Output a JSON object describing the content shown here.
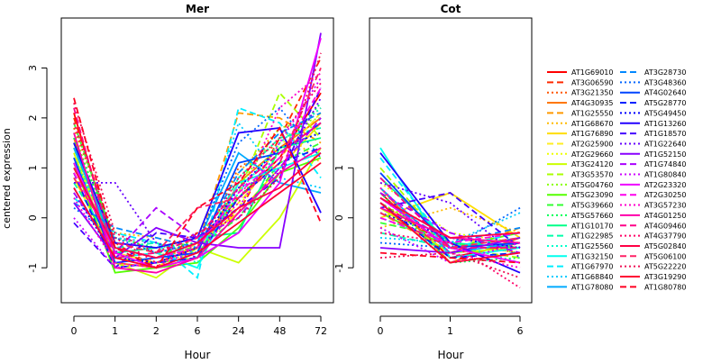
{
  "chart_data": [
    {
      "type": "line",
      "title": "Mer",
      "xlabel": "Hour",
      "ylabel": "centered expression",
      "x": [
        "0",
        "1",
        "2",
        "6",
        "24",
        "48",
        "72"
      ],
      "yticks": [
        "-1",
        "0",
        "1",
        "2",
        "3"
      ],
      "ylim": [
        -1.7,
        4.0
      ],
      "grid": false,
      "series": [
        {
          "name": "AT1G69010",
          "values": [
            2.1,
            -0.7,
            -0.9,
            -0.6,
            0.4,
            1.2,
            2.5
          ]
        },
        {
          "name": "AT3G06590",
          "values": [
            2.0,
            -0.5,
            -1.0,
            -0.3,
            0.1,
            1.6,
            3.2
          ]
        },
        {
          "name": "AT3G21350",
          "values": [
            1.8,
            -0.4,
            -0.5,
            -0.7,
            1.0,
            1.5,
            2.2
          ]
        },
        {
          "name": "AT4G30935",
          "values": [
            1.6,
            -0.9,
            -1.0,
            -0.8,
            0.7,
            1.4,
            2.0
          ]
        },
        {
          "name": "AT1G25550",
          "values": [
            1.5,
            -0.6,
            -0.8,
            -0.6,
            2.1,
            2.0,
            1.5
          ]
        },
        {
          "name": "AT1G68670",
          "values": [
            1.2,
            -0.3,
            -0.4,
            -0.6,
            0.9,
            1.8,
            1.1
          ]
        },
        {
          "name": "AT1G76890",
          "values": [
            0.8,
            -0.8,
            -1.0,
            -0.5,
            0.1,
            1.0,
            1.9
          ]
        },
        {
          "name": "AT2G25900",
          "values": [
            1.0,
            -0.7,
            -0.9,
            -0.6,
            0.3,
            1.2,
            2.1
          ]
        },
        {
          "name": "AT2G29660",
          "values": [
            0.9,
            -1.0,
            -0.9,
            -0.7,
            0.2,
            1.5,
            1.7
          ]
        },
        {
          "name": "AT3G24120",
          "values": [
            1.3,
            -0.9,
            -1.2,
            -0.6,
            -0.9,
            0.0,
            1.4
          ]
        },
        {
          "name": "AT3G53570",
          "values": [
            1.4,
            -0.8,
            -0.9,
            -0.8,
            0.5,
            2.5,
            1.6
          ]
        },
        {
          "name": "AT5G04760",
          "values": [
            1.7,
            -0.6,
            -0.8,
            -0.4,
            0.6,
            1.8,
            2.0
          ]
        },
        {
          "name": "AT5G23090",
          "values": [
            1.1,
            -1.1,
            -1.0,
            -0.9,
            -0.2,
            0.9,
            1.2
          ]
        },
        {
          "name": "AT5G39660",
          "values": [
            1.9,
            -0.5,
            -0.7,
            -0.6,
            0.0,
            1.1,
            1.5
          ]
        },
        {
          "name": "AT5G57660",
          "values": [
            1.6,
            -0.4,
            -0.6,
            -0.5,
            0.4,
            1.3,
            2.3
          ]
        },
        {
          "name": "AT1G10170",
          "values": [
            1.5,
            -0.7,
            -0.6,
            -0.4,
            -0.3,
            1.4,
            1.6
          ]
        },
        {
          "name": "AT1G22985",
          "values": [
            0.7,
            -0.6,
            -0.5,
            -0.8,
            0.8,
            1.6,
            1.8
          ]
        },
        {
          "name": "AT1G25560",
          "values": [
            1.2,
            -0.5,
            -0.6,
            -0.9,
            0.5,
            1.5,
            2.2
          ]
        },
        {
          "name": "AT1G32150",
          "values": [
            0.6,
            -0.8,
            -0.7,
            -1.0,
            0.7,
            1.0,
            1.3
          ]
        },
        {
          "name": "AT1G67970",
          "values": [
            0.4,
            -0.3,
            -0.5,
            -1.2,
            2.2,
            1.9,
            0.8
          ]
        },
        {
          "name": "AT1G68840",
          "values": [
            1.1,
            -0.4,
            -0.5,
            -0.7,
            1.9,
            0.8,
            0.6
          ]
        },
        {
          "name": "AT1G78080",
          "values": [
            1.4,
            -0.6,
            -0.8,
            -0.5,
            1.3,
            0.7,
            0.5
          ]
        },
        {
          "name": "AT3G28730",
          "values": [
            0.3,
            -0.2,
            -0.4,
            -0.6,
            0.9,
            1.7,
            2.1
          ]
        },
        {
          "name": "AT3G48360",
          "values": [
            0.2,
            -0.4,
            -0.7,
            -0.5,
            1.5,
            2.2,
            1.2
          ]
        },
        {
          "name": "AT4G02640",
          "values": [
            1.2,
            -0.9,
            -0.8,
            -0.7,
            1.1,
            1.3,
            1.9
          ]
        },
        {
          "name": "AT5G28770",
          "values": [
            0.9,
            -1.0,
            -0.9,
            -0.8,
            0.4,
            1.1,
            1.4
          ]
        },
        {
          "name": "AT5G49450",
          "values": [
            0.5,
            -0.8,
            -0.9,
            -0.6,
            0.6,
            1.4,
            1.7
          ]
        },
        {
          "name": "AT1G13260",
          "values": [
            1.5,
            -0.5,
            -0.6,
            -0.4,
            1.7,
            1.8,
            0.1
          ]
        },
        {
          "name": "AT1G18570",
          "values": [
            -0.1,
            -1.0,
            -0.3,
            -0.4,
            0.2,
            0.8,
            2.6
          ]
        },
        {
          "name": "AT1G22640",
          "values": [
            0.7,
            0.7,
            -0.5,
            -0.8,
            0.6,
            0.9,
            2.4
          ]
        },
        {
          "name": "AT1G52150",
          "values": [
            0.3,
            -0.8,
            -0.2,
            -0.5,
            -0.6,
            -0.6,
            3.7
          ]
        },
        {
          "name": "AT1G74840",
          "values": [
            0.5,
            -0.7,
            0.2,
            -0.4,
            0.0,
            1.0,
            2.0
          ]
        },
        {
          "name": "AT1G80840",
          "values": [
            0.0,
            -1.0,
            -0.9,
            -0.7,
            0.2,
            1.5,
            2.8
          ]
        },
        {
          "name": "AT2G23320",
          "values": [
            1.1,
            -0.7,
            -1.0,
            -0.8,
            -0.3,
            0.7,
            3.6
          ]
        },
        {
          "name": "AT2G30250",
          "values": [
            0.9,
            -0.6,
            -0.8,
            -0.6,
            0.5,
            1.2,
            2.6
          ]
        },
        {
          "name": "AT3G57230",
          "values": [
            0.4,
            -0.9,
            -1.0,
            -0.5,
            0.3,
            2.2,
            2.9
          ]
        },
        {
          "name": "AT4G01250",
          "values": [
            1.7,
            -1.0,
            -1.1,
            -0.8,
            0.1,
            0.9,
            1.4
          ]
        },
        {
          "name": "AT4G09460",
          "values": [
            2.2,
            -0.8,
            -0.7,
            -0.4,
            0.6,
            1.3,
            1.9
          ]
        },
        {
          "name": "AT4G37790",
          "values": [
            1.9,
            -0.4,
            -0.9,
            -0.6,
            0.8,
            1.6,
            2.7
          ]
        },
        {
          "name": "AT5G02840",
          "values": [
            1.0,
            -0.6,
            -0.8,
            -0.5,
            0.2,
            0.6,
            1.3
          ]
        },
        {
          "name": "AT5G06100",
          "values": [
            0.8,
            -0.5,
            -0.7,
            0.2,
            0.4,
            1.1,
            3.0
          ]
        },
        {
          "name": "AT5G22220",
          "values": [
            2.3,
            -0.3,
            -0.7,
            -0.3,
            0.0,
            0.8,
            3.3
          ]
        },
        {
          "name": "AT3G19290",
          "values": [
            0.6,
            -0.8,
            -1.0,
            -0.7,
            -0.1,
            0.5,
            1.1
          ]
        },
        {
          "name": "AT1G80780",
          "values": [
            2.4,
            -0.6,
            -1.0,
            0.2,
            0.7,
            1.8,
            -0.1
          ]
        }
      ]
    },
    {
      "type": "line",
      "title": "Cot",
      "xlabel": "Hour",
      "ylabel": "",
      "x": [
        "0",
        "1",
        "6"
      ],
      "yticks": [
        "-1",
        "0",
        "1"
      ],
      "ylim": [
        -1.7,
        4.0
      ],
      "grid": false,
      "series": [
        {
          "name": "AT1G69010",
          "values": [
            0.5,
            -0.8,
            -0.5
          ]
        },
        {
          "name": "AT3G06590",
          "values": [
            0.3,
            -0.6,
            -0.9
          ]
        },
        {
          "name": "AT3G21350",
          "values": [
            0.2,
            -0.5,
            -0.7
          ]
        },
        {
          "name": "AT4G30935",
          "values": [
            0.6,
            -0.9,
            -0.4
          ]
        },
        {
          "name": "AT1G25550",
          "values": [
            0.1,
            -0.7,
            -0.2
          ]
        },
        {
          "name": "AT1G68670",
          "values": [
            -0.2,
            0.2,
            -0.3
          ]
        },
        {
          "name": "AT1G76890",
          "values": [
            0.0,
            0.5,
            -0.4
          ]
        },
        {
          "name": "AT2G25900",
          "values": [
            0.4,
            -0.4,
            -0.6
          ]
        },
        {
          "name": "AT2G29660",
          "values": [
            0.7,
            -0.3,
            -0.5
          ]
        },
        {
          "name": "AT3G24120",
          "values": [
            0.2,
            -0.7,
            -0.6
          ]
        },
        {
          "name": "AT3G53570",
          "values": [
            1.0,
            -0.6,
            -0.8
          ]
        },
        {
          "name": "AT5G04760",
          "values": [
            0.3,
            -0.5,
            -0.7
          ]
        },
        {
          "name": "AT5G23090",
          "values": [
            0.1,
            -0.6,
            -0.3
          ]
        },
        {
          "name": "AT5G39660",
          "values": [
            -0.1,
            -0.4,
            -0.5
          ]
        },
        {
          "name": "AT5G57660",
          "values": [
            0.5,
            -0.9,
            -0.8
          ]
        },
        {
          "name": "AT1G10170",
          "values": [
            0.8,
            -0.5,
            -0.6
          ]
        },
        {
          "name": "AT1G22985",
          "values": [
            -0.3,
            -0.6,
            -0.4
          ]
        },
        {
          "name": "AT1G25560",
          "values": [
            0.0,
            -0.5,
            -0.9
          ]
        },
        {
          "name": "AT1G32150",
          "values": [
            1.4,
            -0.8,
            -0.6
          ]
        },
        {
          "name": "AT1G67970",
          "values": [
            1.2,
            -0.6,
            -0.3
          ]
        },
        {
          "name": "AT1G68840",
          "values": [
            -0.4,
            -0.5,
            0.1
          ]
        },
        {
          "name": "AT1G78080",
          "values": [
            0.6,
            -0.7,
            -0.5
          ]
        },
        {
          "name": "AT3G28730",
          "values": [
            0.4,
            -0.5,
            -0.2
          ]
        },
        {
          "name": "AT3G48360",
          "values": [
            -0.5,
            -0.6,
            0.2
          ]
        },
        {
          "name": "AT4G02640",
          "values": [
            0.9,
            -0.6,
            -0.5
          ]
        },
        {
          "name": "AT5G28770",
          "values": [
            0.3,
            -0.8,
            -0.7
          ]
        },
        {
          "name": "AT5G49450",
          "values": [
            0.1,
            -0.4,
            -0.6
          ]
        },
        {
          "name": "AT1G13260",
          "values": [
            1.3,
            -0.5,
            -1.1
          ]
        },
        {
          "name": "AT1G18570",
          "values": [
            0.2,
            0.5,
            -0.6
          ]
        },
        {
          "name": "AT1G22640",
          "values": [
            0.7,
            0.3,
            -0.8
          ]
        },
        {
          "name": "AT1G52150",
          "values": [
            -0.6,
            -0.7,
            -0.4
          ]
        },
        {
          "name": "AT1G74840",
          "values": [
            0.5,
            -0.3,
            -0.7
          ]
        },
        {
          "name": "AT1G80840",
          "values": [
            -0.2,
            -0.9,
            -0.5
          ]
        },
        {
          "name": "AT2G23320",
          "values": [
            0.4,
            -0.6,
            -0.9
          ]
        },
        {
          "name": "AT2G30250",
          "values": [
            0.0,
            -0.5,
            -0.3
          ]
        },
        {
          "name": "AT3G57230",
          "values": [
            0.6,
            -0.7,
            -1.0
          ]
        },
        {
          "name": "AT4G01250",
          "values": [
            0.2,
            -0.4,
            -0.5
          ]
        },
        {
          "name": "AT4G09460",
          "values": [
            0.8,
            -0.6,
            -0.6
          ]
        },
        {
          "name": "AT4G37790",
          "values": [
            -0.3,
            -0.5,
            -1.4
          ]
        },
        {
          "name": "AT5G02840",
          "values": [
            0.4,
            -0.4,
            -0.3
          ]
        },
        {
          "name": "AT5G06100",
          "values": [
            0.1,
            -0.6,
            -0.4
          ]
        },
        {
          "name": "AT5G22220",
          "values": [
            -0.8,
            -0.7,
            -1.2
          ]
        },
        {
          "name": "AT3G19290",
          "values": [
            0.3,
            -0.9,
            -0.7
          ]
        },
        {
          "name": "AT1G80780",
          "values": [
            -0.7,
            -0.8,
            -0.9
          ]
        }
      ]
    }
  ],
  "legend": {
    "placement": "right",
    "colors": [
      "#ff0000",
      "#ff2a00",
      "#ff5500",
      "#ff7700",
      "#ff9900",
      "#ffbb00",
      "#ffdd00",
      "#ffee22",
      "#eeff00",
      "#ccff00",
      "#aaff00",
      "#88ff00",
      "#55ff00",
      "#33ff33",
      "#00ff55",
      "#00ff88",
      "#00ffaa",
      "#00ffcc",
      "#00ffee",
      "#00eeff",
      "#00ccff",
      "#00aaff",
      "#0088ff",
      "#0066ff",
      "#0044ff",
      "#0022ff",
      "#0000ff",
      "#2200ff",
      "#4400ff",
      "#6600ff",
      "#8800ff",
      "#aa00ff",
      "#cc00ff",
      "#ee00ff",
      "#ff00ee",
      "#ff00cc",
      "#ff00aa",
      "#ff0088",
      "#ff0066",
      "#ff0044",
      "#ff2266",
      "#ee1155",
      "#ff0033",
      "#ff0022"
    ],
    "styles": [
      "solid",
      "dashed",
      "dotted",
      "solid",
      "dashed",
      "dotted",
      "solid",
      "dashed",
      "dotted",
      "solid",
      "dashed",
      "dotted",
      "solid",
      "dashed",
      "dotted",
      "solid",
      "dashed",
      "dotted",
      "solid",
      "dashed",
      "dotted",
      "solid",
      "dashed",
      "dotted",
      "solid",
      "dashed",
      "dotted",
      "solid",
      "dashed",
      "dotted",
      "solid",
      "dashed",
      "dotted",
      "solid",
      "dashed",
      "dotted",
      "solid",
      "dashed",
      "dotted",
      "solid",
      "dashed",
      "dotted",
      "solid",
      "dashed"
    ]
  }
}
